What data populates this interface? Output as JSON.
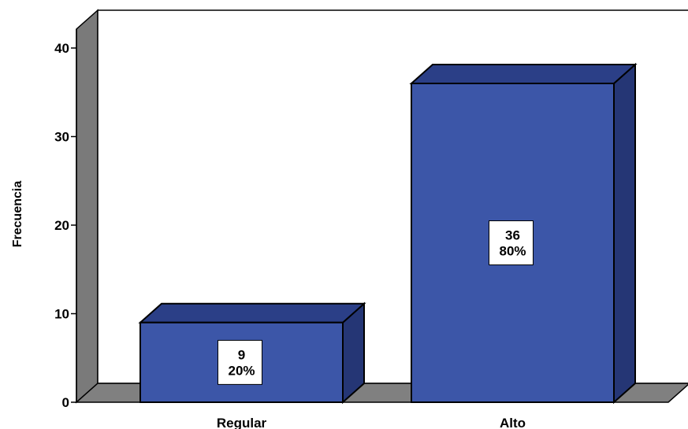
{
  "chart_data": {
    "type": "bar",
    "title": "",
    "xlabel": "",
    "ylabel": "Frecuencia",
    "categories": [
      "Regular",
      "Alto"
    ],
    "values": [
      9,
      36
    ],
    "percent_labels": [
      "20%",
      "80%"
    ],
    "count_labels": [
      "9",
      "36"
    ],
    "ylim": [
      0,
      42
    ],
    "yticks": [
      0,
      10,
      20,
      30,
      40
    ],
    "ytick_labels": [
      "0",
      "10",
      "20",
      "30",
      "40"
    ],
    "grid": false,
    "legend": "none",
    "style": "3d",
    "colors": {
      "bar_front": "#3c56a8",
      "bar_top": "#2b3f87",
      "bar_side": "#253675",
      "wall": "#7a7a7a",
      "floor": "#808080",
      "outline": "#000000"
    }
  }
}
